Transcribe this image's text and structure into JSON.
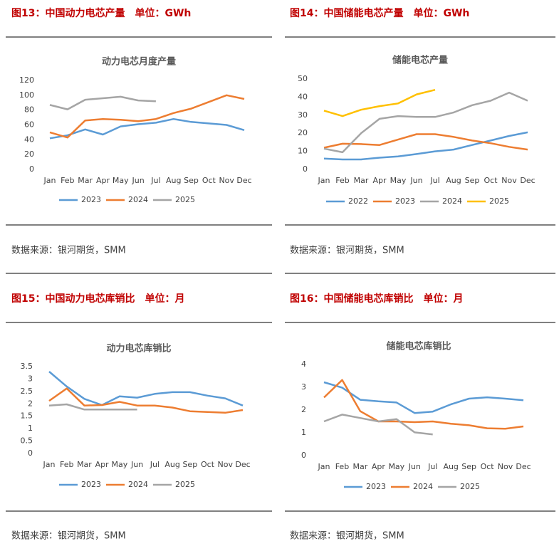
{
  "chart_data": [
    {
      "type": "line",
      "figure_title": "图13：中国动力电芯产量　单位：GWh",
      "title": "动力电芯月度产量",
      "source": "数据来源：银河期货，SMM",
      "categories": [
        "Jan",
        "Feb",
        "Mar",
        "Apr",
        "May",
        "Jun",
        "Jul",
        "Aug",
        "Sep",
        "Oct",
        "Nov",
        "Dec"
      ],
      "ylim": [
        0,
        120
      ],
      "yticks": [
        0,
        20,
        40,
        60,
        80,
        100,
        120
      ],
      "series": [
        {
          "name": "2023",
          "color": "#5b9bd5",
          "values": [
            42,
            46,
            54,
            47,
            58,
            61,
            63,
            68,
            64,
            62,
            60,
            53
          ]
        },
        {
          "name": "2024",
          "color": "#ed7d31",
          "values": [
            50,
            43,
            66,
            68,
            67,
            65,
            68,
            76,
            82,
            91,
            100,
            95
          ]
        },
        {
          "name": "2025",
          "color": "#a5a5a5",
          "values": [
            87,
            81,
            94,
            96,
            98,
            93,
            92,
            null,
            null,
            null,
            null,
            null
          ]
        }
      ]
    },
    {
      "type": "line",
      "figure_title": "图14：中国储能电芯产量　单位：GWh",
      "title": "储能电芯产量",
      "source": "数据来源：银河期货，SMM",
      "categories": [
        "Jan",
        "Feb",
        "Mar",
        "Apr",
        "May",
        "Jun",
        "Jul",
        "Aug",
        "Sep",
        "Oct",
        "Nov",
        "Dec"
      ],
      "ylim": [
        0,
        50
      ],
      "yticks": [
        0,
        10,
        20,
        30,
        40,
        50
      ],
      "series": [
        {
          "name": "2022",
          "color": "#5b9bd5",
          "values": [
            6,
            5.5,
            5.5,
            6.5,
            7.2,
            8.5,
            10,
            11,
            13.5,
            16,
            18.5,
            20.5
          ]
        },
        {
          "name": "2023",
          "color": "#ed7d31",
          "values": [
            12,
            14.2,
            14,
            13.5,
            16.5,
            19.5,
            19.5,
            18,
            16,
            14.5,
            12.5,
            11
          ]
        },
        {
          "name": "2024",
          "color": "#a5a5a5",
          "values": [
            11.5,
            9.5,
            20,
            28,
            29.5,
            29,
            29,
            31.5,
            35.5,
            38,
            42.5,
            38
          ]
        },
        {
          "name": "2025",
          "color": "#ffc000",
          "values": [
            32.5,
            29.5,
            33,
            35,
            36.5,
            41.5,
            44,
            null,
            null,
            null,
            null,
            null
          ]
        }
      ]
    },
    {
      "type": "line",
      "figure_title": "图15：中国动力电芯库销比　单位：月",
      "title": "动力电芯库销比",
      "source": "数据来源：银河期货，SMM",
      "categories": [
        "Jan",
        "Feb",
        "Mar",
        "Apr",
        "May",
        "Jun",
        "Jul",
        "Aug",
        "Sep",
        "Oct",
        "Nov",
        "Dec"
      ],
      "ylim": [
        0,
        3.5
      ],
      "yticks": [
        0,
        0.5,
        1,
        1.5,
        2,
        2.5,
        3,
        3.5
      ],
      "series": [
        {
          "name": "2023",
          "color": "#5b9bd5",
          "values": [
            3.3,
            2.7,
            2.2,
            1.95,
            2.3,
            2.25,
            2.4,
            2.47,
            2.47,
            2.33,
            2.22,
            1.93
          ]
        },
        {
          "name": "2024",
          "color": "#ed7d31",
          "values": [
            2.12,
            2.62,
            1.93,
            1.95,
            2.08,
            1.93,
            1.93,
            1.85,
            1.7,
            1.67,
            1.64,
            1.75
          ]
        },
        {
          "name": "2025",
          "color": "#a5a5a5",
          "values": [
            1.93,
            1.98,
            1.77,
            1.77,
            1.77,
            1.77,
            null,
            null,
            null,
            null,
            null,
            null
          ]
        }
      ]
    },
    {
      "type": "line",
      "figure_title": "图16：中国储能电芯库销比　单位：月",
      "title": "储能电芯库销比",
      "source": "数据来源：银河期货，SMM",
      "categories": [
        "Jan",
        "Feb",
        "Mar",
        "Apr",
        "May",
        "Jun",
        "Jul",
        "Aug",
        "Sep",
        "Oct",
        "Nov",
        "Dec"
      ],
      "ylim": [
        0,
        4
      ],
      "yticks": [
        0,
        1,
        2,
        3,
        4
      ],
      "series": [
        {
          "name": "2023",
          "color": "#5b9bd5",
          "values": [
            3.22,
            2.98,
            2.45,
            2.38,
            2.33,
            1.87,
            1.93,
            2.25,
            2.5,
            2.56,
            2.5,
            2.43
          ]
        },
        {
          "name": "2024",
          "color": "#ed7d31",
          "values": [
            2.55,
            3.32,
            1.95,
            1.5,
            1.5,
            1.47,
            1.5,
            1.4,
            1.33,
            1.2,
            1.18,
            1.28
          ]
        },
        {
          "name": "2025",
          "color": "#a5a5a5",
          "values": [
            1.5,
            1.8,
            1.65,
            1.5,
            1.6,
            1.02,
            0.93,
            null,
            null,
            null,
            null,
            null
          ]
        }
      ]
    }
  ]
}
